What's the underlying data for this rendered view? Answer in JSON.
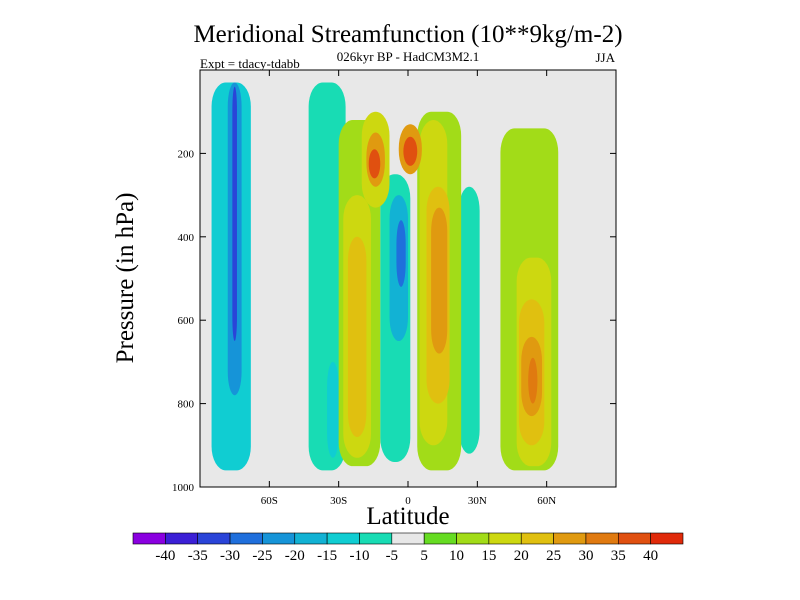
{
  "chart_data": {
    "type": "contour",
    "title": "Meridional Streamfunction (10**9kg/m-2)",
    "subtitle": "026kyr BP - HadCM3M2.1",
    "expt_label": "Expt = tdacy-tdabb",
    "season": "JJA",
    "xlabel": "Latitude",
    "ylabel": "Pressure (in hPa)",
    "xlim": [
      -90,
      90
    ],
    "ylim": [
      1000,
      0
    ],
    "x_ticks": [
      {
        "value": -60,
        "label": "60S"
      },
      {
        "value": -30,
        "label": "30S"
      },
      {
        "value": 0,
        "label": "0"
      },
      {
        "value": 30,
        "label": "30N"
      },
      {
        "value": 60,
        "label": "60N"
      }
    ],
    "y_ticks": [
      {
        "value": 200,
        "label": "200"
      },
      {
        "value": 400,
        "label": "400"
      },
      {
        "value": 600,
        "label": "600"
      },
      {
        "value": 800,
        "label": "800"
      },
      {
        "value": 1000,
        "label": "1000"
      }
    ],
    "levels": [
      "-40",
      "-35",
      "-30",
      "-25",
      "-20",
      "-15",
      "-10",
      "-5",
      "5",
      "10",
      "15",
      "20",
      "25",
      "30",
      "35",
      "40"
    ],
    "colors": [
      "#8a00e0",
      "#3b1fd6",
      "#2a44d8",
      "#1f6fdc",
      "#1694d8",
      "#12b2d4",
      "#10cdd2",
      "#18dcb4",
      "#e8e8e8",
      "#66dc22",
      "#a2dc18",
      "#cdd810",
      "#e0c010",
      "#e09a10",
      "#e07a10",
      "#e05010",
      "#e02a0a"
    ],
    "regions": [
      {
        "value": -15,
        "lat": [
          -85,
          -68
        ],
        "p": [
          30,
          960
        ]
      },
      {
        "value": -25,
        "lat": [
          -78,
          -72
        ],
        "p": [
          30,
          780
        ]
      },
      {
        "value": -35,
        "lat": [
          -76,
          -74
        ],
        "p": [
          40,
          650
        ]
      },
      {
        "value": -10,
        "lat": [
          -43,
          -27
        ],
        "p": [
          30,
          960
        ]
      },
      {
        "value": -15,
        "lat": [
          -35,
          -30
        ],
        "p": [
          700,
          930
        ]
      },
      {
        "value": -10,
        "lat": [
          -12,
          1
        ],
        "p": [
          250,
          940
        ]
      },
      {
        "value": -20,
        "lat": [
          -8,
          0
        ],
        "p": [
          300,
          650
        ]
      },
      {
        "value": -30,
        "lat": [
          -5,
          -1
        ],
        "p": [
          360,
          520
        ]
      },
      {
        "value": -10,
        "lat": [
          22,
          31
        ],
        "p": [
          280,
          920
        ]
      },
      {
        "value": 10,
        "lat": [
          -30,
          -12
        ],
        "p": [
          120,
          950
        ]
      },
      {
        "value": 15,
        "lat": [
          -28,
          -16
        ],
        "p": [
          300,
          930
        ]
      },
      {
        "value": 20,
        "lat": [
          -26,
          -18
        ],
        "p": [
          400,
          880
        ]
      },
      {
        "value": 15,
        "lat": [
          -20,
          -8
        ],
        "p": [
          100,
          330
        ]
      },
      {
        "value": 25,
        "lat": [
          -18,
          -10
        ],
        "p": [
          150,
          280
        ]
      },
      {
        "value": 35,
        "lat": [
          -17,
          -12
        ],
        "p": [
          190,
          260
        ]
      },
      {
        "value": 10,
        "lat": [
          4,
          23
        ],
        "p": [
          100,
          960
        ]
      },
      {
        "value": 15,
        "lat": [
          5,
          17
        ],
        "p": [
          120,
          900
        ]
      },
      {
        "value": 20,
        "lat": [
          8,
          18
        ],
        "p": [
          280,
          800
        ]
      },
      {
        "value": 25,
        "lat": [
          10,
          17
        ],
        "p": [
          330,
          680
        ]
      },
      {
        "value": 25,
        "lat": [
          -4,
          6
        ],
        "p": [
          130,
          250
        ]
      },
      {
        "value": 35,
        "lat": [
          -2,
          4
        ],
        "p": [
          160,
          230
        ]
      },
      {
        "value": 10,
        "lat": [
          40,
          65
        ],
        "p": [
          140,
          960
        ]
      },
      {
        "value": 15,
        "lat": [
          47,
          62
        ],
        "p": [
          450,
          950
        ]
      },
      {
        "value": 20,
        "lat": [
          48,
          59
        ],
        "p": [
          550,
          900
        ]
      },
      {
        "value": 25,
        "lat": [
          49,
          58
        ],
        "p": [
          640,
          830
        ]
      },
      {
        "value": 30,
        "lat": [
          52,
          56
        ],
        "p": [
          690,
          800
        ]
      }
    ]
  }
}
